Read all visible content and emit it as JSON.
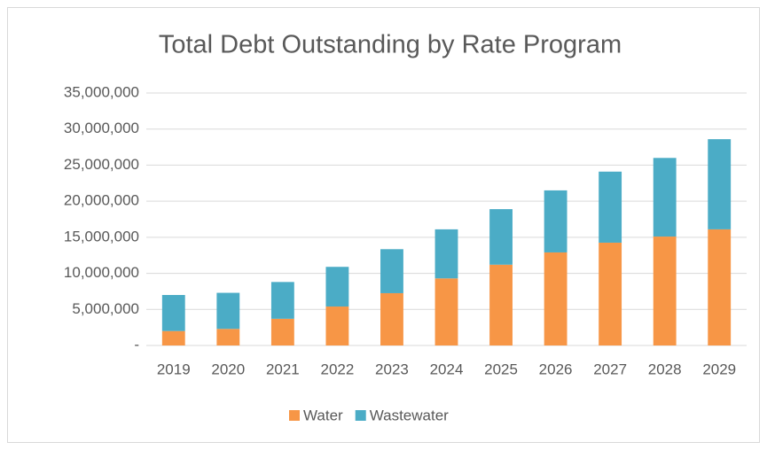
{
  "chart_data": {
    "type": "stacked_bar",
    "title": "Total Debt Outstanding by Rate Program",
    "categories": [
      "2019",
      "2020",
      "2021",
      "2022",
      "2023",
      "2024",
      "2025",
      "2026",
      "2027",
      "2028",
      "2029"
    ],
    "series": [
      {
        "name": "Water",
        "color": "#f79646",
        "values": [
          2000000,
          2300000,
          3700000,
          5400000,
          7250000,
          9300000,
          11200000,
          12900000,
          14250000,
          15100000,
          16100000
        ]
      },
      {
        "name": "Wastewater",
        "color": "#4bacc6",
        "values": [
          5000000,
          5000000,
          5100000,
          5500000,
          6100000,
          6800000,
          7700000,
          8600000,
          9850000,
          10900000,
          12500000
        ]
      }
    ],
    "ylim": [
      0,
      35000000
    ],
    "yticks": [
      {
        "value": 0,
        "label": "-"
      },
      {
        "value": 5000000,
        "label": "5,000,000"
      },
      {
        "value": 10000000,
        "label": "10,000,000"
      },
      {
        "value": 15000000,
        "label": "15,000,000"
      },
      {
        "value": 20000000,
        "label": "20,000,000"
      },
      {
        "value": 25000000,
        "label": "25,000,000"
      },
      {
        "value": 30000000,
        "label": "30,000,000"
      },
      {
        "value": 35000000,
        "label": "35,000,000"
      }
    ],
    "grid": true,
    "legend": "bottom"
  }
}
